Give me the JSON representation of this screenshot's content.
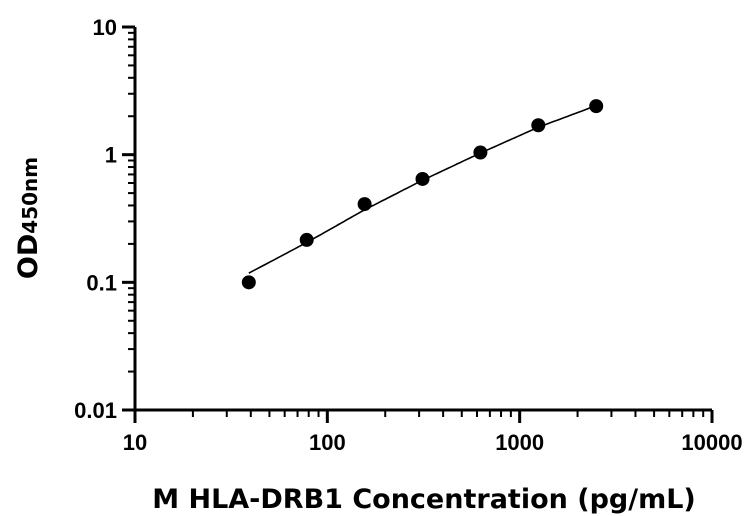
{
  "chart_data": {
    "type": "scatter",
    "title": "",
    "xlabel": "M HLA-DRB1 Concentration (pg/mL)",
    "ylabel": "OD",
    "ylabel_subscript": "450nm",
    "x_scale": "log",
    "y_scale": "log",
    "xlim": [
      10,
      10000
    ],
    "ylim": [
      0.01,
      10
    ],
    "x_ticks": [
      10,
      100,
      1000,
      10000
    ],
    "x_tick_labels": [
      "10",
      "100",
      "1000",
      "10000"
    ],
    "y_ticks": [
      0.01,
      0.1,
      1,
      10
    ],
    "y_tick_labels": [
      "0.01",
      "0.1",
      "1",
      "10"
    ],
    "grid": false,
    "legend": "none",
    "points": [
      {
        "x": 39.06,
        "y": 0.1
      },
      {
        "x": 78.13,
        "y": 0.215
      },
      {
        "x": 156.25,
        "y": 0.41
      },
      {
        "x": 312.5,
        "y": 0.645
      },
      {
        "x": 625,
        "y": 1.04
      },
      {
        "x": 1250,
        "y": 1.7
      },
      {
        "x": 2500,
        "y": 2.4
      }
    ],
    "fit_curve": {
      "x": [
        39.06,
        78.13,
        156.25,
        312.5,
        625,
        1250,
        2500
      ],
      "y": [
        0.118,
        0.205,
        0.37,
        0.63,
        1.03,
        1.64,
        2.42
      ]
    },
    "colors": {
      "points": "#000000",
      "line": "#000000",
      "axes": "#000000"
    }
  }
}
